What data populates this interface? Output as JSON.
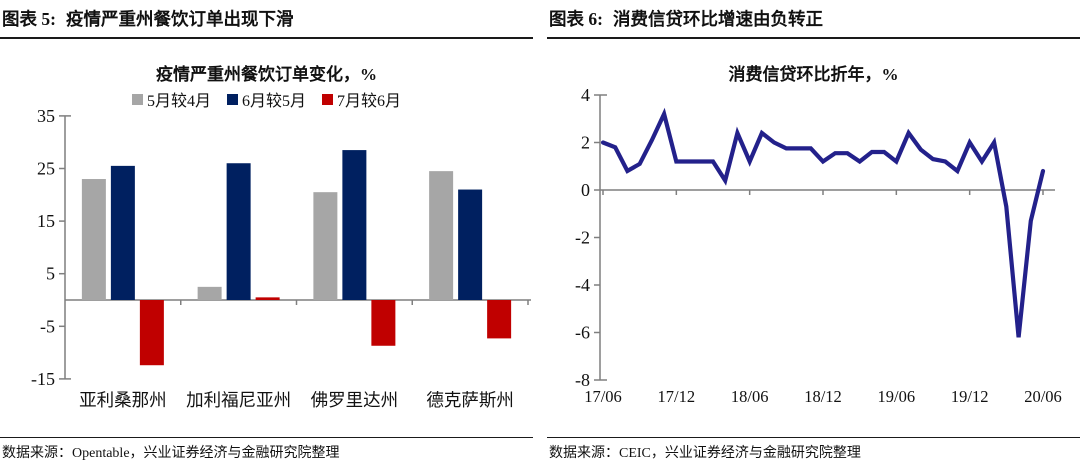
{
  "panels": [
    {
      "header_num": "图表 5:",
      "header_title": "疫情严重州餐饮订单出现下滑",
      "source": "数据来源：Opentable，兴业证券经济与金融研究院整理"
    },
    {
      "header_num": "图表 6:",
      "header_title": "消费信贷环比增速由负转正",
      "source": "数据来源：CEIC，兴业证券经济与金融研究院整理"
    }
  ],
  "chart_data": [
    {
      "type": "bar",
      "title": "疫情严重州餐饮订单变化，%",
      "categories": [
        "亚利桑那州",
        "加利福尼亚州",
        "佛罗里达州",
        "德克萨斯州"
      ],
      "series": [
        {
          "name": "5月较4月",
          "color": "#a6a6a6",
          "values": [
            23,
            2.5,
            20.5,
            24.5
          ]
        },
        {
          "name": "6月较5月",
          "color": "#002060",
          "values": [
            25.5,
            26,
            28.5,
            21
          ]
        },
        {
          "name": "7月较6月",
          "color": "#c00000",
          "values": [
            -12.4,
            0.5,
            -8.7,
            -7.3
          ]
        }
      ],
      "yticks": [
        35,
        25,
        15,
        5,
        -5,
        -15
      ],
      "ylim": [
        -15,
        35
      ],
      "legend_position": "top",
      "grid": "off",
      "axis_color": "#7f7f7f"
    },
    {
      "type": "line",
      "title": "消费信贷环比折年，%",
      "line_color": "#23218b",
      "yticks": [
        4,
        2,
        0,
        -2,
        -4,
        -6,
        -8
      ],
      "ylim": [
        -8,
        4
      ],
      "x_tick_labels": [
        "17/06",
        "17/12",
        "18/06",
        "18/12",
        "19/06",
        "19/12",
        "20/06"
      ],
      "n_points": 37,
      "frequency": "monthly",
      "values": [
        2.0,
        1.8,
        0.8,
        1.1,
        2.1,
        3.2,
        1.2,
        1.2,
        1.2,
        1.2,
        0.4,
        2.4,
        1.2,
        2.4,
        2.0,
        1.75,
        1.75,
        1.75,
        1.2,
        1.55,
        1.55,
        1.2,
        1.6,
        1.6,
        1.2,
        2.4,
        1.7,
        1.3,
        1.2,
        0.8,
        2.0,
        1.2,
        2.0,
        -0.7,
        -6.2,
        -1.3,
        0.8
      ],
      "grid": "off",
      "axis_color": "#7f7f7f"
    }
  ]
}
